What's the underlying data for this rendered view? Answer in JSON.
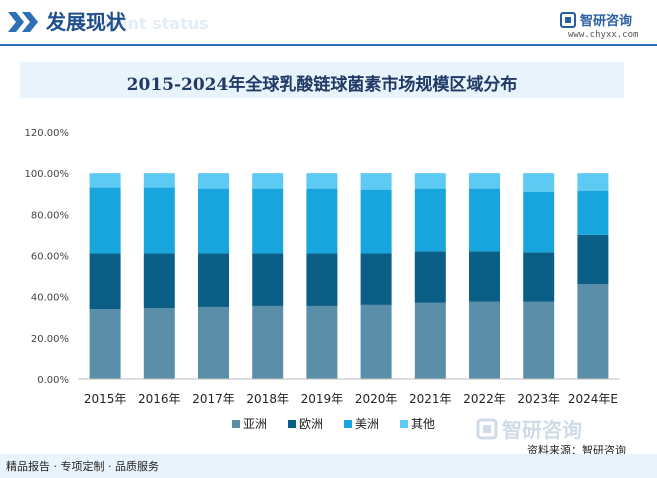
{
  "header": {
    "title": "发展现状",
    "watermark": "ment status",
    "brand_name": "智研咨询",
    "url": "www.chyxx.com"
  },
  "chart_data": {
    "type": "bar",
    "stacked": true,
    "title": "2015-2024年全球乳酸链球菌素市场规模区域分布",
    "categories": [
      "2015年",
      "2016年",
      "2017年",
      "2018年",
      "2019年",
      "2020年",
      "2021年",
      "2022年",
      "2023年",
      "2024年E"
    ],
    "y_ticks": [
      "0.00%",
      "20.00%",
      "40.00%",
      "60.00%",
      "80.00%",
      "100.00%",
      "120.00%"
    ],
    "ylim": [
      0,
      120
    ],
    "series": [
      {
        "name": "亚洲",
        "color": "#5b8fa9",
        "values": [
          34,
          34.5,
          35,
          35.5,
          35.5,
          36,
          37,
          37.5,
          37.5,
          46
        ]
      },
      {
        "name": "欧洲",
        "color": "#0b5e86",
        "values": [
          27,
          26.5,
          26,
          25.5,
          25.5,
          25,
          25,
          24.5,
          24,
          24
        ]
      },
      {
        "name": "美洲",
        "color": "#18a4dd",
        "values": [
          32,
          32,
          31.5,
          31.5,
          31.5,
          31,
          30.5,
          30.5,
          29.5,
          21.5
        ]
      },
      {
        "name": "其他",
        "color": "#5ccaf2",
        "values": [
          7,
          7,
          7.5,
          7.5,
          7.5,
          8,
          7.5,
          7.5,
          9,
          8.5
        ]
      }
    ],
    "legend_position": "bottom",
    "grid": false
  },
  "footer": {
    "brand_name": "智研咨询",
    "source": "资料来源：智研咨询",
    "slogan": "精品报告 · 专项定制 · 品质服务"
  }
}
